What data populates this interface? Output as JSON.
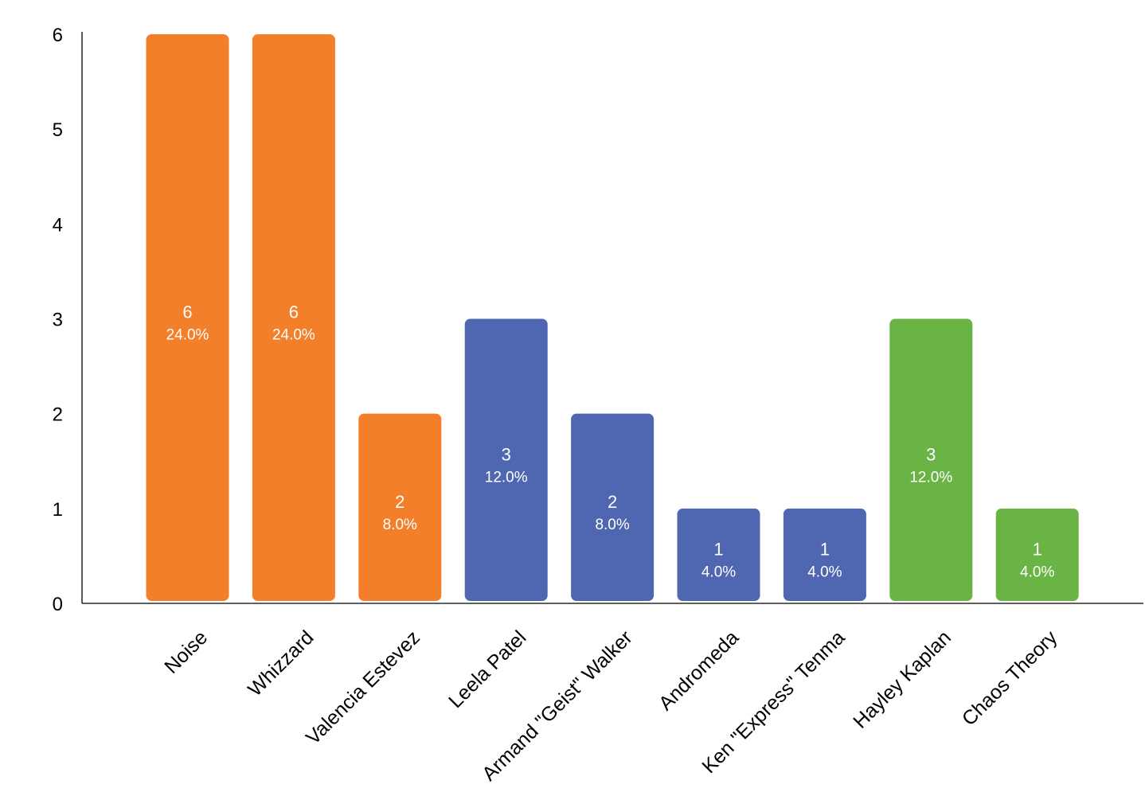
{
  "chart_data": {
    "type": "bar",
    "categories": [
      "Noise",
      "Whizzard",
      "Valencia Estevez",
      "Leela Patel",
      "Armand \"Geist\" Walker",
      "Andromeda",
      "Ken \"Express\" Tenma",
      "Hayley Kaplan",
      "Chaos Theory"
    ],
    "values": [
      6,
      6,
      2,
      3,
      2,
      1,
      1,
      3,
      1
    ],
    "percent_labels": [
      "24.0%",
      "24.0%",
      "8.0%",
      "12.0%",
      "8.0%",
      "4.0%",
      "4.0%",
      "12.0%",
      "4.0%"
    ],
    "bar_colors": [
      "#f47f2b",
      "#f47f2b",
      "#f47f2b",
      "#4f67b0",
      "#4f67b0",
      "#4f67b0",
      "#4f67b0",
      "#6ab445",
      "#6ab445"
    ],
    "yticks": [
      0,
      1,
      2,
      3,
      4,
      5,
      6
    ],
    "ylim": [
      0,
      6
    ],
    "title": "",
    "xlabel": "",
    "ylabel": "",
    "grid": false,
    "legend": "none"
  }
}
